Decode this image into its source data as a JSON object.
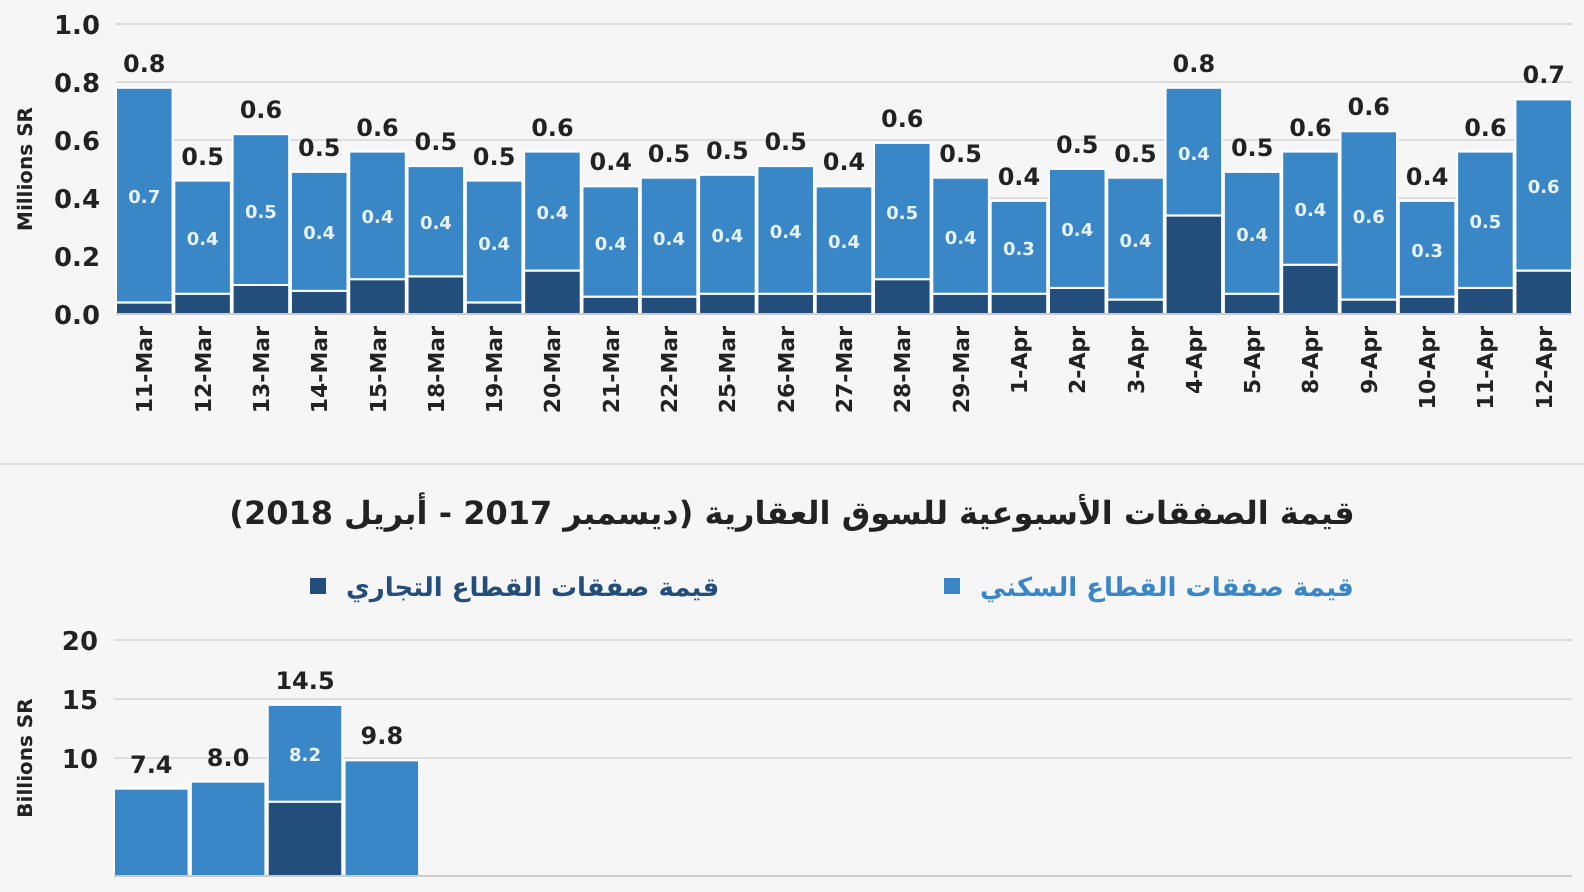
{
  "chart_data": [
    {
      "type": "bar",
      "stacked": true,
      "ylabel": "Millions SR",
      "legend": false,
      "grid": "y",
      "categories": [
        "11-Mar",
        "12-Mar",
        "13-Mar",
        "14-Mar",
        "15-Mar",
        "18-Mar",
        "19-Mar",
        "20-Mar",
        "21-Mar",
        "22-Mar",
        "25-Mar",
        "26-Mar",
        "27-Mar",
        "28-Mar",
        "29-Mar",
        "1-Apr",
        "2-Apr",
        "3-Apr",
        "4-Apr",
        "5-Apr",
        "8-Apr",
        "9-Apr",
        "10-Apr",
        "11-Apr",
        "12-Apr"
      ],
      "ylim": [
        0,
        1
      ],
      "yticks": [
        {
          "value": 0,
          "label": "0.0"
        },
        {
          "value": 0.2,
          "label": "0.2"
        },
        {
          "value": 0.4,
          "label": "0.4"
        },
        {
          "value": 0.6,
          "label": "0.6"
        },
        {
          "value": 0.8,
          "label": "0.8"
        },
        {
          "value": 1,
          "label": "1.0"
        }
      ],
      "series": [
        {
          "color": "#234d7a",
          "values": [
            0.04,
            0.07,
            0.1,
            0.08,
            0.12,
            0.13,
            0.04,
            0.15,
            0.06,
            0.06,
            0.07,
            0.07,
            0.07,
            0.12,
            0.07,
            0.07,
            0.09,
            0.05,
            0.34,
            0.07,
            0.17,
            0.05,
            0.06,
            0.09,
            0.15
          ]
        },
        {
          "color": "#3a87c8",
          "values": [
            0.74,
            0.39,
            0.52,
            0.41,
            0.44,
            0.38,
            0.42,
            0.41,
            0.38,
            0.41,
            0.41,
            0.44,
            0.37,
            0.47,
            0.4,
            0.32,
            0.41,
            0.42,
            0.44,
            0.42,
            0.39,
            0.58,
            0.33,
            0.47,
            0.59
          ],
          "value_labels": [
            "0.7",
            "0.4",
            "0.5",
            "0.4",
            "0.4",
            "0.4",
            "0.4",
            "0.4",
            "0.4",
            "0.4",
            "0.4",
            "0.4",
            "0.4",
            "0.5",
            "0.4",
            "0.3",
            "0.4",
            "0.4",
            "0.4",
            "0.4",
            "0.4",
            "0.6",
            "0.3",
            "0.5",
            "0.6"
          ]
        }
      ],
      "totals": [
        "0.8",
        "0.5",
        "0.6",
        "0.5",
        "0.6",
        "0.5",
        "0.5",
        "0.6",
        "0.4",
        "0.5",
        "0.5",
        "0.5",
        "0.4",
        "0.6",
        "0.5",
        "0.4",
        "0.5",
        "0.5",
        "0.8",
        "0.5",
        "0.6",
        "0.6",
        "0.4",
        "0.6",
        "0.7"
      ]
    },
    {
      "type": "bar",
      "stacked": true,
      "title": "قيمة الصفقات الأسبوعية للسوق العقارية (ديسمبر 2017 - أبريل 2018)",
      "ylabel": "Billions SR",
      "legend": "top",
      "grid": "y",
      "categories": [
        null,
        null,
        null,
        null,
        null,
        null,
        null,
        null,
        null,
        null,
        null,
        null,
        null,
        null,
        null,
        null,
        null,
        null,
        null
      ],
      "ylim": [
        0,
        20
      ],
      "yticks": [
        10,
        15,
        20
      ],
      "series": [
        {
          "name": "قيمة صفقات القطاع التجاري",
          "color": "#234d7a",
          "values": [
            null,
            null,
            6.3,
            null,
            null,
            null,
            null,
            null,
            null,
            null,
            null,
            null,
            null,
            null,
            null,
            null,
            null,
            null,
            null
          ]
        },
        {
          "name": "قيمة صفقات القطاع السكني",
          "color": "#3a87c8",
          "values": [
            7.4,
            8.0,
            8.2,
            9.8,
            null,
            null,
            null,
            null,
            null,
            null,
            null,
            null,
            null,
            null,
            null,
            null,
            null,
            null,
            null
          ],
          "value_labels": [
            null,
            null,
            "8.2",
            null,
            null,
            null,
            null,
            null,
            null,
            null,
            null,
            null,
            null,
            null,
            null,
            null,
            null,
            null,
            null
          ]
        }
      ],
      "totals": [
        "7.4",
        "8.0",
        "14.5",
        "9.8",
        null,
        null,
        null,
        null,
        null,
        null,
        null,
        null,
        null,
        null,
        null,
        null,
        null,
        null,
        null
      ]
    }
  ]
}
